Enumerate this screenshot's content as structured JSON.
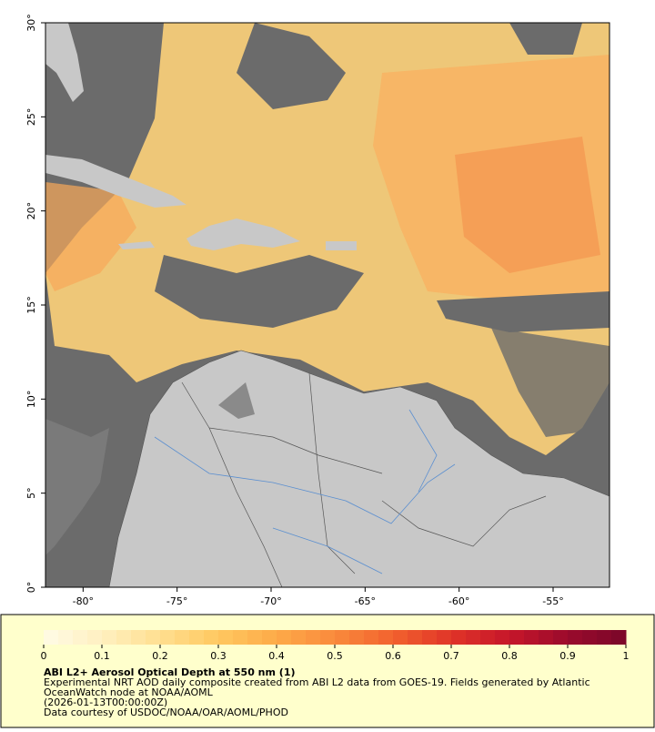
{
  "map": {
    "xlim": [
      -82,
      -52
    ],
    "ylim": [
      0,
      30
    ],
    "xticks": [
      {
        "value": -80,
        "label": "-80°"
      },
      {
        "value": -75,
        "label": "-75°"
      },
      {
        "value": -70,
        "label": "-70°"
      },
      {
        "value": -65,
        "label": "-65°"
      },
      {
        "value": -60,
        "label": "-60°"
      },
      {
        "value": -55,
        "label": "-55°"
      }
    ],
    "yticks": [
      {
        "value": 0,
        "label": "0°"
      },
      {
        "value": 5,
        "label": "5°"
      },
      {
        "value": 10,
        "label": "10°"
      },
      {
        "value": 15,
        "label": "15°"
      },
      {
        "value": 20,
        "label": "20°"
      },
      {
        "value": 25,
        "label": "25°"
      },
      {
        "value": 30,
        "label": "30°"
      }
    ]
  },
  "colorbar": {
    "lim": [
      0,
      1
    ],
    "ticks": [
      0,
      0.1,
      0.2,
      0.3,
      0.4,
      0.5,
      0.6,
      0.7,
      0.8,
      0.9,
      1
    ],
    "colors": [
      "#fffbe6",
      "#fff0c0",
      "#ffdf90",
      "#ffc860",
      "#fdaa48",
      "#f98a3c",
      "#f2622e",
      "#e03428",
      "#c6162a",
      "#9a0a2c",
      "#7a0628"
    ]
  },
  "caption": {
    "title": "ABI L2+ Aerosol Optical Depth at 550 nm (1)",
    "lines": [
      "Experimental NRT AOD daily composite created from ABI L2 data from GOES-19. Fields generated by Atlantic",
      "OceanWatch node at NOAA/AOML",
      "(2026-01-13T00:00:00Z)",
      "Data courtesy of USDOC/NOAA/OAR/AOML/PHOD"
    ]
  }
}
